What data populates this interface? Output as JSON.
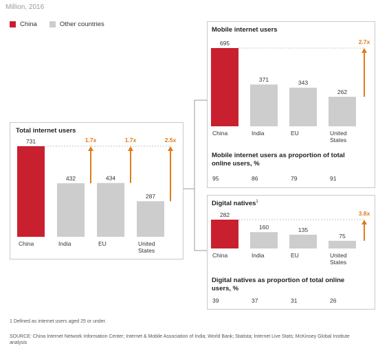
{
  "unit_label": "Million, 2016",
  "legend": [
    {
      "label": "China",
      "color": "#c8202f"
    },
    {
      "label": "Other countries",
      "color": "#cdcdcd"
    }
  ],
  "footnote": "1  Defined as internet users aged 25 or under.",
  "source": "SOURCE:  China Internet Network Information Center; Internet & Mobile Association of India; World Bank; Statista; Internet Live Stats; McKinsey Global Institute analysis",
  "colors": {
    "china": "#c8202f",
    "other": "#cdcdcd",
    "multiplier": "#e07b1a",
    "panel_border": "#c8c8c8"
  },
  "chart_data": [
    {
      "type": "bar",
      "title": "Total internet users",
      "categories": [
        "China",
        "India",
        "EU",
        "United States"
      ],
      "values": [
        731,
        432,
        434,
        287
      ],
      "multipliers": [
        "",
        "1.7x",
        "1.7x",
        "2.5x"
      ]
    },
    {
      "type": "bar",
      "title": "Mobile internet users",
      "categories": [
        "China",
        "India",
        "EU",
        "United States"
      ],
      "values": [
        695,
        371,
        343,
        262
      ],
      "multipliers": [
        "",
        "",
        "",
        "2.7x"
      ],
      "proportion_label": "Mobile internet users as proportion of total online users, %",
      "proportions": [
        95,
        86,
        79,
        91
      ]
    },
    {
      "type": "bar",
      "title": "Digital natives",
      "title_note": "1",
      "categories": [
        "China",
        "India",
        "EU",
        "United States"
      ],
      "values": [
        282,
        160,
        135,
        75
      ],
      "multipliers": [
        "",
        "",
        "",
        "3.8x"
      ],
      "proportion_label": "Digital natives as proportion of total online users, %",
      "proportions": [
        39,
        37,
        31,
        26
      ]
    }
  ]
}
